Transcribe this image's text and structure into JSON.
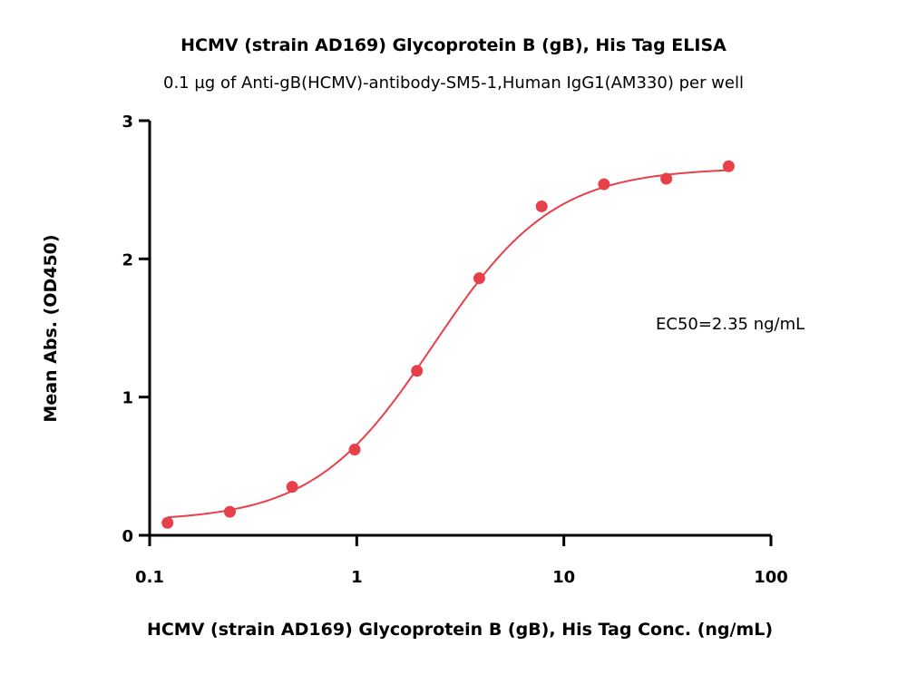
{
  "chart_data": {
    "type": "scatter",
    "title": "HCMV (strain AD169) Glycoprotein B (gB), His Tag ELISA",
    "subtitle": "0.1 µg of Anti-gB(HCMV)-antibody-SM5-1,Human IgG1(AM330) per well",
    "xlabel": "HCMV (strain AD169) Glycoprotein B (gB), His Tag Conc. (ng/mL)",
    "ylabel": "Mean Abs. (OD450)",
    "xscale": "log",
    "xlim": [
      0.1,
      100
    ],
    "ylim": [
      0,
      3
    ],
    "x_ticks": [
      "0.1",
      "1",
      "10",
      "100"
    ],
    "y_ticks": [
      "0",
      "1",
      "2",
      "3"
    ],
    "grid": false,
    "annotation": "EC50=2.35 ng/mL",
    "color": "#e8404a",
    "series": [
      {
        "x": [
          0.122,
          0.244,
          0.488,
          0.977,
          1.953,
          3.906,
          7.8125,
          15.625,
          31.25,
          62.5
        ],
        "y": [
          0.09,
          0.17,
          0.35,
          0.62,
          1.19,
          1.86,
          2.38,
          2.54,
          2.58,
          2.67
        ]
      }
    ],
    "fit": {
      "type": "4PL",
      "bottom": 0.1,
      "top": 2.66,
      "ec50": 2.35,
      "hill": 1.5
    }
  }
}
